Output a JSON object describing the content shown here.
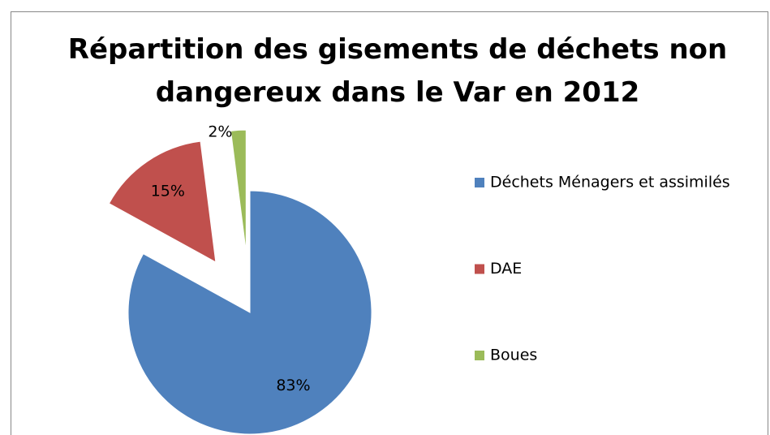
{
  "chart_data": {
    "type": "pie",
    "title": "Répartition des gisements de déchets non dangereux dans le Var en 2012",
    "categories": [
      "Déchets Ménagers et assimilés",
      "DAE",
      "Boues"
    ],
    "values": [
      83,
      15,
      2
    ],
    "value_labels": [
      "83%",
      "15%",
      "2%"
    ],
    "colors": [
      "#4f81bd",
      "#c0504d",
      "#9bbb59"
    ],
    "legend": "right"
  }
}
